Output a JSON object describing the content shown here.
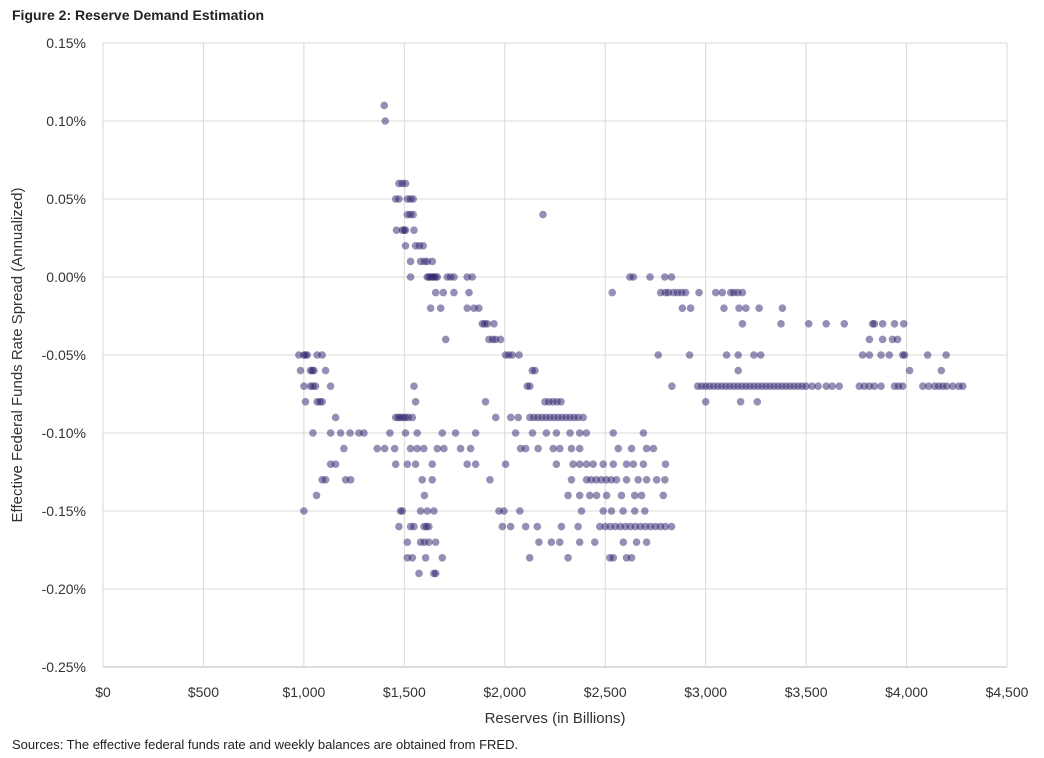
{
  "chart_data": {
    "type": "scatter",
    "title": "Figure 2: Reserve Demand Estimation",
    "xlabel": "Reserves (in Billions)",
    "ylabel": "Effective Federal Funds Rate Spread (Annualized)",
    "source": "Sources: The effective federal funds rate and weekly balances are obtained from FRED.",
    "xlim": [
      0,
      4500
    ],
    "ylim": [
      -0.25,
      0.15
    ],
    "xticks": [
      0,
      500,
      1000,
      1500,
      2000,
      2500,
      3000,
      3500,
      4000,
      4500
    ],
    "xtick_labels": [
      "$0",
      "$500",
      "$1,000",
      "$1,500",
      "$2,000",
      "$2,500",
      "$3,000",
      "$3,500",
      "$4,000",
      "$4,500"
    ],
    "yticks": [
      0.15,
      0.1,
      0.05,
      0.0,
      -0.05,
      -0.1,
      -0.15,
      -0.2,
      -0.25
    ],
    "ytick_labels": [
      "0.15%",
      "0.10%",
      "0.05%",
      "0.00%",
      "-0.05%",
      "-0.10%",
      "-0.15%",
      "-0.20%",
      "-0.25%"
    ],
    "grid": true,
    "marker_color": "#2e1f6b",
    "points": [
      [
        1400,
        0.11
      ],
      [
        1405,
        0.1
      ],
      [
        2190,
        0.04
      ],
      [
        1473,
        0.06
      ],
      [
        1490,
        0.06
      ],
      [
        1506,
        0.06
      ],
      [
        1457,
        0.05
      ],
      [
        1473,
        0.05
      ],
      [
        1515,
        0.05
      ],
      [
        1531,
        0.05
      ],
      [
        1544,
        0.05
      ],
      [
        1515,
        0.04
      ],
      [
        1530,
        0.04
      ],
      [
        1544,
        0.04
      ],
      [
        1461,
        0.03
      ],
      [
        1490,
        0.03
      ],
      [
        1500,
        0.03
      ],
      [
        1506,
        0.03
      ],
      [
        1548,
        0.03
      ],
      [
        1506,
        0.02
      ],
      [
        1556,
        0.02
      ],
      [
        1575,
        0.02
      ],
      [
        1594,
        0.02
      ],
      [
        1531,
        0.01
      ],
      [
        1581,
        0.01
      ],
      [
        1600,
        0.01
      ],
      [
        1614,
        0.01
      ],
      [
        1639,
        0.01
      ],
      [
        1531,
        0.0
      ],
      [
        1614,
        0.0
      ],
      [
        1622,
        0.0
      ],
      [
        1631,
        0.0
      ],
      [
        1640,
        0.0
      ],
      [
        1647,
        0.0
      ],
      [
        1656,
        0.0
      ],
      [
        1664,
        0.0
      ],
      [
        1714,
        0.0
      ],
      [
        1730,
        0.0
      ],
      [
        1747,
        0.0
      ],
      [
        1813,
        0.0
      ],
      [
        1838,
        0.0
      ],
      [
        1656,
        -0.01
      ],
      [
        1694,
        -0.01
      ],
      [
        1747,
        -0.01
      ],
      [
        1822,
        -0.01
      ],
      [
        1631,
        -0.02
      ],
      [
        1681,
        -0.02
      ],
      [
        1813,
        -0.02
      ],
      [
        1847,
        -0.02
      ],
      [
        1871,
        -0.02
      ],
      [
        1888,
        -0.03
      ],
      [
        1900,
        -0.03
      ],
      [
        1913,
        -0.03
      ],
      [
        1946,
        -0.03
      ],
      [
        1706,
        -0.04
      ],
      [
        1921,
        -0.04
      ],
      [
        1940,
        -0.04
      ],
      [
        1954,
        -0.04
      ],
      [
        1979,
        -0.04
      ],
      [
        975,
        -0.05
      ],
      [
        1000,
        -0.05
      ],
      [
        1008,
        -0.05
      ],
      [
        1017,
        -0.05
      ],
      [
        1066,
        -0.05
      ],
      [
        1091,
        -0.05
      ],
      [
        2004,
        -0.05
      ],
      [
        2020,
        -0.05
      ],
      [
        2037,
        -0.05
      ],
      [
        2071,
        -0.05
      ],
      [
        983,
        -0.06
      ],
      [
        1033,
        -0.06
      ],
      [
        1042,
        -0.06
      ],
      [
        1050,
        -0.06
      ],
      [
        1108,
        -0.06
      ],
      [
        2137,
        -0.06
      ],
      [
        2150,
        -0.06
      ],
      [
        1000,
        -0.07
      ],
      [
        1033,
        -0.07
      ],
      [
        1045,
        -0.07
      ],
      [
        1058,
        -0.07
      ],
      [
        1133,
        -0.07
      ],
      [
        1548,
        -0.07
      ],
      [
        2112,
        -0.07
      ],
      [
        2125,
        -0.07
      ],
      [
        1008,
        -0.08
      ],
      [
        1066,
        -0.08
      ],
      [
        1080,
        -0.08
      ],
      [
        1091,
        -0.08
      ],
      [
        1556,
        -0.08
      ],
      [
        1904,
        -0.08
      ],
      [
        2200,
        -0.08
      ],
      [
        2220,
        -0.08
      ],
      [
        2240,
        -0.08
      ],
      [
        2260,
        -0.08
      ],
      [
        2280,
        -0.08
      ],
      [
        1158,
        -0.09
      ],
      [
        1457,
        -0.09
      ],
      [
        1470,
        -0.09
      ],
      [
        1481,
        -0.09
      ],
      [
        1494,
        -0.09
      ],
      [
        1506,
        -0.09
      ],
      [
        1520,
        -0.09
      ],
      [
        1540,
        -0.09
      ],
      [
        1955,
        -0.09
      ],
      [
        2030,
        -0.09
      ],
      [
        2067,
        -0.09
      ],
      [
        2125,
        -0.09
      ],
      [
        2145,
        -0.09
      ],
      [
        2165,
        -0.09
      ],
      [
        2185,
        -0.09
      ],
      [
        2205,
        -0.09
      ],
      [
        2225,
        -0.09
      ],
      [
        2245,
        -0.09
      ],
      [
        2265,
        -0.09
      ],
      [
        2285,
        -0.09
      ],
      [
        2305,
        -0.09
      ],
      [
        2325,
        -0.09
      ],
      [
        2345,
        -0.09
      ],
      [
        2365,
        -0.09
      ],
      [
        2390,
        -0.09
      ],
      [
        1045,
        -0.1
      ],
      [
        1133,
        -0.1
      ],
      [
        1183,
        -0.1
      ],
      [
        1230,
        -0.1
      ],
      [
        1274,
        -0.1
      ],
      [
        1299,
        -0.1
      ],
      [
        1428,
        -0.1
      ],
      [
        1506,
        -0.1
      ],
      [
        1564,
        -0.1
      ],
      [
        1689,
        -0.1
      ],
      [
        1755,
        -0.1
      ],
      [
        1855,
        -0.1
      ],
      [
        2054,
        -0.1
      ],
      [
        2138,
        -0.1
      ],
      [
        2207,
        -0.1
      ],
      [
        2257,
        -0.1
      ],
      [
        2325,
        -0.1
      ],
      [
        2373,
        -0.1
      ],
      [
        2406,
        -0.1
      ],
      [
        2540,
        -0.1
      ],
      [
        2690,
        -0.1
      ],
      [
        1199,
        -0.11
      ],
      [
        1365,
        -0.11
      ],
      [
        1402,
        -0.11
      ],
      [
        1452,
        -0.11
      ],
      [
        1531,
        -0.11
      ],
      [
        1564,
        -0.11
      ],
      [
        1597,
        -0.11
      ],
      [
        1664,
        -0.11
      ],
      [
        1697,
        -0.11
      ],
      [
        1780,
        -0.11
      ],
      [
        1830,
        -0.11
      ],
      [
        2079,
        -0.11
      ],
      [
        2104,
        -0.11
      ],
      [
        2166,
        -0.11
      ],
      [
        2241,
        -0.11
      ],
      [
        2274,
        -0.11
      ],
      [
        2332,
        -0.11
      ],
      [
        2373,
        -0.11
      ],
      [
        2565,
        -0.11
      ],
      [
        2631,
        -0.11
      ],
      [
        2706,
        -0.11
      ],
      [
        2740,
        -0.11
      ],
      [
        1133,
        -0.12
      ],
      [
        1158,
        -0.12
      ],
      [
        1457,
        -0.12
      ],
      [
        1515,
        -0.12
      ],
      [
        1556,
        -0.12
      ],
      [
        1639,
        -0.12
      ],
      [
        1813,
        -0.12
      ],
      [
        1855,
        -0.12
      ],
      [
        2004,
        -0.12
      ],
      [
        2257,
        -0.12
      ],
      [
        2340,
        -0.12
      ],
      [
        2373,
        -0.12
      ],
      [
        2407,
        -0.12
      ],
      [
        2440,
        -0.12
      ],
      [
        2490,
        -0.12
      ],
      [
        2540,
        -0.12
      ],
      [
        2606,
        -0.12
      ],
      [
        2640,
        -0.12
      ],
      [
        2690,
        -0.12
      ],
      [
        2800,
        -0.12
      ],
      [
        1091,
        -0.13
      ],
      [
        1108,
        -0.13
      ],
      [
        1208,
        -0.13
      ],
      [
        1233,
        -0.13
      ],
      [
        1589,
        -0.13
      ],
      [
        1639,
        -0.13
      ],
      [
        1926,
        -0.13
      ],
      [
        2332,
        -0.13
      ],
      [
        2407,
        -0.13
      ],
      [
        2430,
        -0.13
      ],
      [
        2455,
        -0.13
      ],
      [
        2480,
        -0.13
      ],
      [
        2505,
        -0.13
      ],
      [
        2530,
        -0.13
      ],
      [
        2556,
        -0.13
      ],
      [
        2606,
        -0.13
      ],
      [
        2664,
        -0.13
      ],
      [
        2706,
        -0.13
      ],
      [
        2756,
        -0.13
      ],
      [
        2797,
        -0.13
      ],
      [
        1063,
        -0.14
      ],
      [
        1600,
        -0.14
      ],
      [
        2315,
        -0.14
      ],
      [
        2373,
        -0.14
      ],
      [
        2423,
        -0.14
      ],
      [
        2457,
        -0.14
      ],
      [
        2507,
        -0.14
      ],
      [
        2581,
        -0.14
      ],
      [
        2647,
        -0.14
      ],
      [
        2681,
        -0.14
      ],
      [
        2789,
        -0.14
      ],
      [
        1000,
        -0.15
      ],
      [
        1481,
        -0.15
      ],
      [
        1490,
        -0.15
      ],
      [
        1581,
        -0.15
      ],
      [
        1614,
        -0.15
      ],
      [
        1647,
        -0.15
      ],
      [
        1971,
        -0.15
      ],
      [
        1996,
        -0.15
      ],
      [
        2075,
        -0.15
      ],
      [
        2382,
        -0.15
      ],
      [
        2490,
        -0.15
      ],
      [
        2531,
        -0.15
      ],
      [
        2589,
        -0.15
      ],
      [
        2647,
        -0.15
      ],
      [
        2697,
        -0.15
      ],
      [
        1473,
        -0.16
      ],
      [
        1531,
        -0.16
      ],
      [
        1548,
        -0.16
      ],
      [
        1598,
        -0.16
      ],
      [
        1610,
        -0.16
      ],
      [
        1622,
        -0.16
      ],
      [
        1988,
        -0.16
      ],
      [
        2029,
        -0.16
      ],
      [
        2104,
        -0.16
      ],
      [
        2162,
        -0.16
      ],
      [
        2282,
        -0.16
      ],
      [
        2365,
        -0.16
      ],
      [
        2473,
        -0.16
      ],
      [
        2500,
        -0.16
      ],
      [
        2525,
        -0.16
      ],
      [
        2550,
        -0.16
      ],
      [
        2575,
        -0.16
      ],
      [
        2600,
        -0.16
      ],
      [
        2625,
        -0.16
      ],
      [
        2650,
        -0.16
      ],
      [
        2675,
        -0.16
      ],
      [
        2700,
        -0.16
      ],
      [
        2725,
        -0.16
      ],
      [
        2750,
        -0.16
      ],
      [
        2775,
        -0.16
      ],
      [
        2800,
        -0.16
      ],
      [
        2830,
        -0.16
      ],
      [
        1515,
        -0.17
      ],
      [
        1581,
        -0.17
      ],
      [
        1600,
        -0.17
      ],
      [
        1622,
        -0.17
      ],
      [
        1656,
        -0.17
      ],
      [
        2170,
        -0.17
      ],
      [
        2232,
        -0.17
      ],
      [
        2274,
        -0.17
      ],
      [
        2373,
        -0.17
      ],
      [
        2448,
        -0.17
      ],
      [
        2590,
        -0.17
      ],
      [
        2656,
        -0.17
      ],
      [
        2706,
        -0.17
      ],
      [
        1515,
        -0.18
      ],
      [
        1540,
        -0.18
      ],
      [
        1606,
        -0.18
      ],
      [
        1689,
        -0.18
      ],
      [
        2124,
        -0.18
      ],
      [
        2315,
        -0.18
      ],
      [
        2523,
        -0.18
      ],
      [
        2540,
        -0.18
      ],
      [
        2606,
        -0.18
      ],
      [
        2631,
        -0.18
      ],
      [
        1573,
        -0.19
      ],
      [
        1647,
        -0.19
      ],
      [
        1656,
        -0.19
      ],
      [
        2623,
        0.0
      ],
      [
        2640,
        0.0
      ],
      [
        2723,
        0.0
      ],
      [
        2797,
        0.0
      ],
      [
        2830,
        0.0
      ],
      [
        2535,
        -0.01
      ],
      [
        2776,
        -0.01
      ],
      [
        2800,
        -0.01
      ],
      [
        2815,
        -0.01
      ],
      [
        2840,
        -0.01
      ],
      [
        2860,
        -0.01
      ],
      [
        2880,
        -0.01
      ],
      [
        2900,
        -0.01
      ],
      [
        2967,
        -0.01
      ],
      [
        3050,
        -0.01
      ],
      [
        3083,
        -0.01
      ],
      [
        3125,
        -0.01
      ],
      [
        3140,
        -0.01
      ],
      [
        3160,
        -0.01
      ],
      [
        3183,
        -0.01
      ],
      [
        2884,
        -0.02
      ],
      [
        2925,
        -0.02
      ],
      [
        3091,
        -0.02
      ],
      [
        3166,
        -0.02
      ],
      [
        3200,
        -0.02
      ],
      [
        3266,
        -0.02
      ],
      [
        3382,
        -0.02
      ],
      [
        3183,
        -0.03
      ],
      [
        3375,
        -0.03
      ],
      [
        3513,
        -0.03
      ],
      [
        3600,
        -0.03
      ],
      [
        3690,
        -0.03
      ],
      [
        3831,
        -0.03
      ],
      [
        3840,
        -0.03
      ],
      [
        3881,
        -0.03
      ],
      [
        3940,
        -0.03
      ],
      [
        3986,
        -0.03
      ],
      [
        3815,
        -0.04
      ],
      [
        3881,
        -0.04
      ],
      [
        3930,
        -0.04
      ],
      [
        3955,
        -0.04
      ],
      [
        2764,
        -0.05
      ],
      [
        2920,
        -0.05
      ],
      [
        3104,
        -0.05
      ],
      [
        3162,
        -0.05
      ],
      [
        3240,
        -0.05
      ],
      [
        3274,
        -0.05
      ],
      [
        3781,
        -0.05
      ],
      [
        3815,
        -0.05
      ],
      [
        3873,
        -0.05
      ],
      [
        3914,
        -0.05
      ],
      [
        3981,
        -0.05
      ],
      [
        3990,
        -0.05
      ],
      [
        4105,
        -0.05
      ],
      [
        4197,
        -0.05
      ],
      [
        3162,
        -0.06
      ],
      [
        4015,
        -0.06
      ],
      [
        4173,
        -0.06
      ],
      [
        2832,
        -0.07
      ],
      [
        2960,
        -0.07
      ],
      [
        2980,
        -0.07
      ],
      [
        3000,
        -0.07
      ],
      [
        3020,
        -0.07
      ],
      [
        3040,
        -0.07
      ],
      [
        3060,
        -0.07
      ],
      [
        3080,
        -0.07
      ],
      [
        3100,
        -0.07
      ],
      [
        3120,
        -0.07
      ],
      [
        3140,
        -0.07
      ],
      [
        3160,
        -0.07
      ],
      [
        3180,
        -0.07
      ],
      [
        3200,
        -0.07
      ],
      [
        3220,
        -0.07
      ],
      [
        3240,
        -0.07
      ],
      [
        3260,
        -0.07
      ],
      [
        3280,
        -0.07
      ],
      [
        3300,
        -0.07
      ],
      [
        3320,
        -0.07
      ],
      [
        3340,
        -0.07
      ],
      [
        3360,
        -0.07
      ],
      [
        3380,
        -0.07
      ],
      [
        3400,
        -0.07
      ],
      [
        3420,
        -0.07
      ],
      [
        3440,
        -0.07
      ],
      [
        3460,
        -0.07
      ],
      [
        3480,
        -0.07
      ],
      [
        3500,
        -0.07
      ],
      [
        3530,
        -0.07
      ],
      [
        3560,
        -0.07
      ],
      [
        3600,
        -0.07
      ],
      [
        3630,
        -0.07
      ],
      [
        3665,
        -0.07
      ],
      [
        3765,
        -0.07
      ],
      [
        3790,
        -0.07
      ],
      [
        3815,
        -0.07
      ],
      [
        3840,
        -0.07
      ],
      [
        3873,
        -0.07
      ],
      [
        3940,
        -0.07
      ],
      [
        3960,
        -0.07
      ],
      [
        3981,
        -0.07
      ],
      [
        4081,
        -0.07
      ],
      [
        4110,
        -0.07
      ],
      [
        4140,
        -0.07
      ],
      [
        4160,
        -0.07
      ],
      [
        4180,
        -0.07
      ],
      [
        4200,
        -0.07
      ],
      [
        4230,
        -0.07
      ],
      [
        4260,
        -0.07
      ],
      [
        4280,
        -0.07
      ],
      [
        3000,
        -0.08
      ],
      [
        3174,
        -0.08
      ],
      [
        3257,
        -0.08
      ]
    ]
  }
}
